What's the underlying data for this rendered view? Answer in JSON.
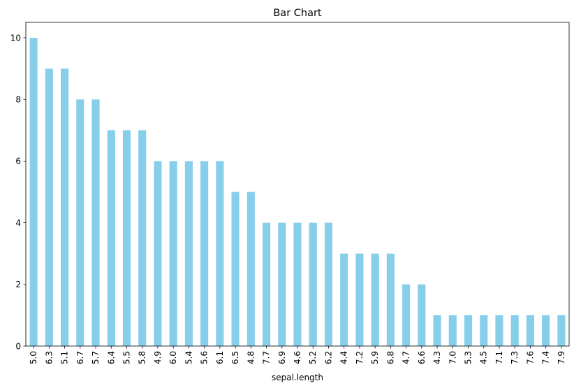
{
  "chart_data": {
    "type": "bar",
    "title": "Bar Chart",
    "xlabel": "sepal.length",
    "ylabel": "",
    "categories": [
      "5.0",
      "6.3",
      "5.1",
      "6.7",
      "5.7",
      "6.4",
      "5.5",
      "5.8",
      "4.9",
      "6.0",
      "5.4",
      "5.6",
      "6.1",
      "6.5",
      "4.8",
      "7.7",
      "6.9",
      "4.6",
      "5.2",
      "6.2",
      "4.4",
      "7.2",
      "5.9",
      "6.8",
      "4.7",
      "6.6",
      "4.3",
      "7.0",
      "5.3",
      "4.5",
      "7.1",
      "7.3",
      "7.6",
      "7.4",
      "7.9"
    ],
    "values": [
      10,
      9,
      9,
      8,
      8,
      7,
      7,
      7,
      6,
      6,
      6,
      6,
      6,
      5,
      5,
      4,
      4,
      4,
      4,
      4,
      3,
      3,
      3,
      3,
      2,
      2,
      1,
      1,
      1,
      1,
      1,
      1,
      1,
      1,
      1
    ],
    "ylim": [
      0,
      10.5
    ],
    "yticks": [
      0,
      2,
      4,
      6,
      8,
      10
    ],
    "bar_color": "#87ceeb",
    "grid": false,
    "legend": "none"
  }
}
